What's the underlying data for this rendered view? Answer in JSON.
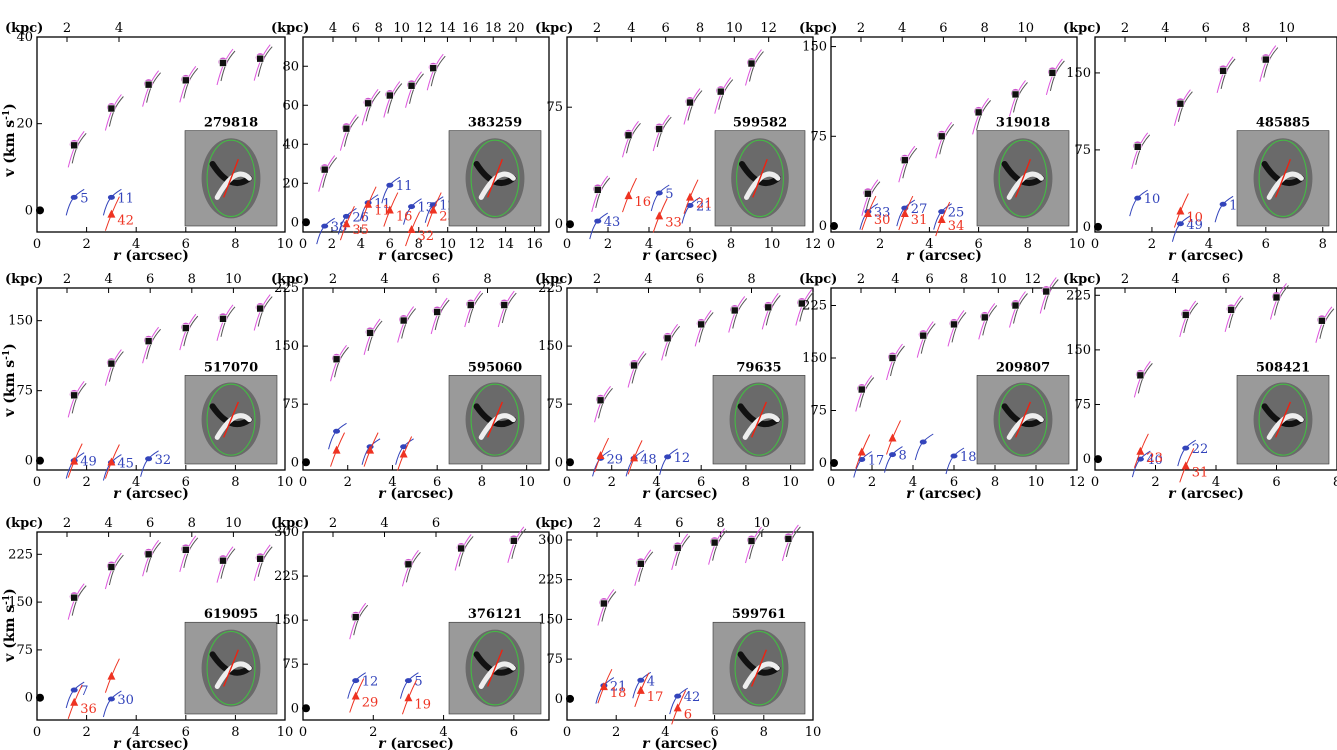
{
  "figure": {
    "top_axis_unit": "(kpc)",
    "bottom_axis_label_r": "r",
    "bottom_axis_label_unit": "(arcsec)",
    "y_axis_label": "v (km s",
    "y_axis_label_sup": "-1",
    "y_axis_label_close": ")"
  },
  "colors": {
    "filled_marker": "#cc55cc",
    "open_marker": "#111111",
    "blue": "#3344bb",
    "red": "#ee3322",
    "pink_line": "#dd55dd",
    "gray_line": "#555555",
    "ellipse": "#44bb44",
    "pa_line": "#ee2211"
  },
  "chart_data": [
    {
      "type": "scatter",
      "id": "279818",
      "ylabels": [
        "0",
        "20",
        "40"
      ],
      "xticks": [
        "0",
        "2",
        "4",
        "6",
        "8",
        "10"
      ],
      "kpc_ticks": [
        "2",
        "4"
      ],
      "outer": [
        [
          1.5,
          15
        ],
        [
          3,
          23.5
        ],
        [
          4.5,
          29
        ],
        [
          6,
          30
        ],
        [
          7.5,
          34
        ],
        [
          9,
          35
        ]
      ],
      "blue": [
        [
          1.5,
          3,
          "5"
        ],
        [
          3,
          3,
          "11"
        ]
      ],
      "red": [
        [
          3,
          -1,
          "42"
        ]
      ]
    },
    {
      "type": "scatter",
      "id": "383259",
      "ylabels": [
        "0",
        "20",
        "40",
        "60",
        "80"
      ],
      "xticks": [
        "0",
        "2",
        "4",
        "6",
        "8",
        "10",
        "12",
        "14",
        "16"
      ],
      "kpc_ticks": [
        "4",
        "6",
        "8",
        "10",
        "12",
        "14",
        "16",
        "18",
        "20"
      ],
      "outer": [
        [
          1.5,
          27
        ],
        [
          3,
          48
        ],
        [
          4.5,
          61
        ],
        [
          6,
          65
        ],
        [
          7.5,
          70
        ],
        [
          9,
          79
        ]
      ],
      "blue": [
        [
          1.5,
          -2,
          "38"
        ],
        [
          3,
          3,
          "26"
        ],
        [
          4.5,
          10,
          "11"
        ],
        [
          6,
          19,
          "11"
        ],
        [
          7.5,
          8,
          "13"
        ],
        [
          9,
          9,
          "12"
        ]
      ],
      "red": [
        [
          3,
          -1,
          "35"
        ],
        [
          4.5,
          9,
          "11"
        ],
        [
          6,
          6,
          "16"
        ],
        [
          7.5,
          -4,
          "32"
        ],
        [
          9,
          6,
          "23"
        ]
      ]
    },
    {
      "type": "scatter",
      "id": "599582",
      "ylabels": [
        "0",
        "75"
      ],
      "xticks": [
        "0",
        "2",
        "4",
        "6",
        "8",
        "10",
        "12"
      ],
      "kpc_ticks": [
        "2",
        "4",
        "6",
        "8",
        "10",
        "12"
      ],
      "outer": [
        [
          1.5,
          22
        ],
        [
          3,
          57
        ],
        [
          4.5,
          61
        ],
        [
          6,
          78
        ],
        [
          7.5,
          85
        ],
        [
          9,
          103
        ]
      ],
      "blue": [
        [
          1.5,
          2,
          "43"
        ],
        [
          4.5,
          20,
          "5"
        ],
        [
          6,
          12,
          "21"
        ]
      ],
      "red": [
        [
          3,
          18,
          "16"
        ],
        [
          4.5,
          5,
          "33"
        ],
        [
          6,
          17,
          "21"
        ]
      ]
    },
    {
      "type": "scatter",
      "id": "319018",
      "ylabels": [
        "0",
        "75",
        "150"
      ],
      "xticks": [
        "0",
        "2",
        "4",
        "6",
        "8",
        "10"
      ],
      "kpc_ticks": [
        "2",
        "4",
        "6",
        "8",
        "10"
      ],
      "outer": [
        [
          1.5,
          27
        ],
        [
          3,
          55
        ],
        [
          4.5,
          75
        ],
        [
          6,
          95
        ],
        [
          7.5,
          110
        ],
        [
          9,
          128
        ]
      ],
      "blue": [
        [
          1.5,
          12,
          "33"
        ],
        [
          3,
          15,
          "27"
        ],
        [
          4.5,
          12,
          "25"
        ]
      ],
      "red": [
        [
          1.5,
          10,
          "30"
        ],
        [
          3,
          10,
          "31"
        ],
        [
          4.5,
          5,
          "34"
        ]
      ]
    },
    {
      "type": "scatter",
      "id": "485885",
      "ylabels": [
        "0",
        "75",
        "150"
      ],
      "xticks": [
        "0",
        "2",
        "4",
        "6",
        "8"
      ],
      "kpc_ticks": [
        "2",
        "4",
        "6",
        "8",
        "10"
      ],
      "outer": [
        [
          1.5,
          78
        ],
        [
          3,
          120
        ],
        [
          4.5,
          152
        ],
        [
          6,
          163
        ]
      ],
      "blue": [
        [
          1.5,
          28,
          "10"
        ],
        [
          3,
          3,
          "49"
        ],
        [
          4.5,
          22,
          "10"
        ]
      ],
      "red": [
        [
          3,
          15,
          "10"
        ]
      ]
    },
    {
      "type": "scatter",
      "id": "517070",
      "ylabels": [
        "0",
        "75",
        "150"
      ],
      "xticks": [
        "0",
        "2",
        "4",
        "6",
        "8",
        "10"
      ],
      "kpc_ticks": [
        "2",
        "4",
        "6",
        "8",
        "10"
      ],
      "outer": [
        [
          1.5,
          70
        ],
        [
          3,
          104
        ],
        [
          4.5,
          128
        ],
        [
          6,
          142
        ],
        [
          7.5,
          152
        ],
        [
          9,
          163
        ]
      ],
      "blue": [
        [
          1.5,
          0,
          "49"
        ],
        [
          3,
          -2,
          "45"
        ],
        [
          4.5,
          2,
          "32"
        ]
      ],
      "red": [
        [
          1.5,
          -1,
          ""
        ],
        [
          3,
          -2,
          ""
        ]
      ]
    },
    {
      "type": "scatter",
      "id": "595060",
      "ylabels": [
        "0",
        "75",
        "150",
        "225"
      ],
      "xticks": [
        "0",
        "2",
        "4",
        "6",
        "8",
        "10"
      ],
      "kpc_ticks": [
        "2",
        "4",
        "6",
        "8"
      ],
      "outer": [
        [
          1.5,
          133
        ],
        [
          3,
          167
        ],
        [
          4.5,
          183
        ],
        [
          6,
          194
        ],
        [
          7.5,
          203
        ],
        [
          9,
          203
        ]
      ],
      "blue": [
        [
          1.5,
          40,
          ""
        ],
        [
          3,
          20,
          ""
        ],
        [
          4.5,
          20,
          ""
        ]
      ],
      "red": [
        [
          1.5,
          15,
          ""
        ],
        [
          3,
          15,
          ""
        ],
        [
          4.5,
          10,
          ""
        ]
      ]
    },
    {
      "type": "scatter",
      "id": "79635",
      "ylabels": [
        "0",
        "75",
        "150",
        "225"
      ],
      "xticks": [
        "0",
        "2",
        "4",
        "6",
        "8",
        "10"
      ],
      "kpc_ticks": [
        "2",
        "4",
        "6",
        "8"
      ],
      "outer": [
        [
          1.5,
          80
        ],
        [
          3,
          125
        ],
        [
          4.5,
          160
        ],
        [
          6,
          178
        ],
        [
          7.5,
          196
        ],
        [
          9,
          200
        ],
        [
          10.5,
          205
        ]
      ],
      "blue": [
        [
          1.5,
          5,
          "29"
        ],
        [
          3,
          5,
          "48"
        ],
        [
          4.5,
          7,
          "12"
        ]
      ],
      "red": [
        [
          1.5,
          8,
          ""
        ],
        [
          3,
          5,
          ""
        ]
      ]
    },
    {
      "type": "scatter",
      "id": "209807",
      "ylabels": [
        "0",
        "75",
        "150",
        "225"
      ],
      "xticks": [
        "0",
        "2",
        "4",
        "6",
        "8",
        "10",
        "12"
      ],
      "kpc_ticks": [
        "2",
        "4",
        "6",
        "8",
        "10",
        "12"
      ],
      "outer": [
        [
          1.5,
          105
        ],
        [
          3,
          150
        ],
        [
          4.5,
          182
        ],
        [
          6,
          198
        ],
        [
          7.5,
          208
        ],
        [
          9,
          225
        ],
        [
          10.5,
          245
        ]
      ],
      "blue": [
        [
          1.5,
          5,
          "17"
        ],
        [
          3,
          12,
          "8"
        ],
        [
          4.5,
          30,
          ""
        ],
        [
          6,
          10,
          "18"
        ]
      ],
      "red": [
        [
          1.5,
          15,
          ""
        ],
        [
          3,
          35,
          ""
        ]
      ]
    },
    {
      "type": "scatter",
      "id": "508421",
      "ylabels": [
        "0",
        "75",
        "150",
        "225"
      ],
      "xticks": [
        "0",
        "2",
        "4",
        "6",
        "8"
      ],
      "kpc_ticks": [
        "2",
        "4",
        "6",
        "8"
      ],
      "outer": [
        [
          1.5,
          115
        ],
        [
          3,
          198
        ],
        [
          4.5,
          205
        ],
        [
          6,
          222
        ],
        [
          7.5,
          190
        ]
      ],
      "blue": [
        [
          1.5,
          0,
          "40"
        ],
        [
          3,
          15,
          "22"
        ]
      ],
      "red": [
        [
          1.5,
          10,
          "23"
        ],
        [
          3,
          -10,
          "31"
        ]
      ]
    },
    {
      "type": "scatter",
      "id": "619095",
      "ylabels": [
        "0",
        "75",
        "150",
        "225"
      ],
      "xticks": [
        "0",
        "2",
        "4",
        "6",
        "8",
        "10"
      ],
      "kpc_ticks": [
        "2",
        "4",
        "6",
        "8",
        "10"
      ],
      "outer": [
        [
          1.5,
          157
        ],
        [
          3,
          205
        ],
        [
          4.5,
          225
        ],
        [
          6,
          232
        ],
        [
          7.5,
          215
        ],
        [
          9,
          218
        ]
      ],
      "blue": [
        [
          1.5,
          12,
          "7"
        ],
        [
          3,
          -2,
          "30"
        ]
      ],
      "red": [
        [
          1.5,
          -8,
          "36"
        ],
        [
          3,
          33,
          ""
        ]
      ]
    },
    {
      "type": "scatter",
      "id": "376121",
      "ylabels": [
        "0",
        "75",
        "150",
        "225",
        "300"
      ],
      "xticks": [
        "0",
        "2",
        "4",
        "6"
      ],
      "kpc_ticks": [
        "2",
        "4",
        "6"
      ],
      "outer": [
        [
          1.5,
          155
        ],
        [
          3,
          245
        ],
        [
          4.5,
          272
        ],
        [
          6,
          285
        ]
      ],
      "blue": [
        [
          1.5,
          47,
          "12"
        ],
        [
          3,
          47,
          "5"
        ]
      ],
      "red": [
        [
          1.5,
          20,
          "29"
        ],
        [
          3,
          17,
          "19"
        ]
      ]
    },
    {
      "type": "scatter",
      "id": "599761",
      "ylabels": [
        "0",
        "75",
        "150",
        "225",
        "300"
      ],
      "xticks": [
        "0",
        "2",
        "4",
        "6",
        "8",
        "10"
      ],
      "kpc_ticks": [
        "2",
        "4",
        "6",
        "8",
        "10"
      ],
      "outer": [
        [
          1.5,
          180
        ],
        [
          3,
          255
        ],
        [
          4.5,
          285
        ],
        [
          6,
          295
        ],
        [
          7.5,
          298
        ],
        [
          9,
          302
        ]
      ],
      "blue": [
        [
          1.5,
          25,
          "21"
        ],
        [
          3,
          35,
          "4"
        ],
        [
          4.5,
          5,
          "42"
        ]
      ],
      "red": [
        [
          1.5,
          22,
          "18"
        ],
        [
          3,
          15,
          "17"
        ],
        [
          4.5,
          -18,
          "6"
        ]
      ]
    }
  ]
}
